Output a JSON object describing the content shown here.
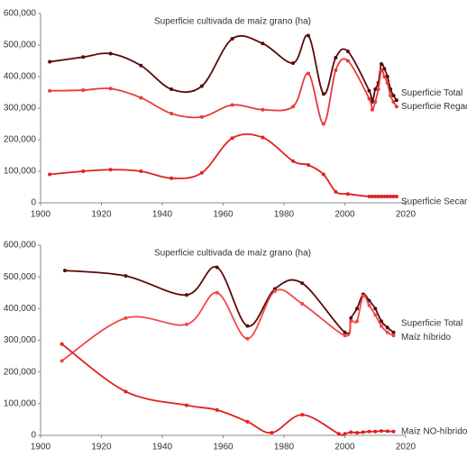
{
  "chart_data": [
    {
      "type": "line",
      "title": "Superficie cultivada de maíz grano (ha)",
      "xlim": [
        1900,
        2020
      ],
      "xticks": [
        1900,
        1920,
        1940,
        1960,
        1980,
        2000,
        2020
      ],
      "ylim": [
        0,
        600000
      ],
      "yticks": [
        0,
        {
          "value": 100000,
          "label": "100,000"
        },
        {
          "value": 200000,
          "label": "200,000"
        },
        {
          "value": 300000,
          "label": "300,000"
        },
        {
          "value": 400000,
          "label": "400,000"
        },
        {
          "value": 500000,
          "label": "500,000"
        },
        {
          "value": 600000,
          "label": "600,000"
        }
      ],
      "series": [
        {
          "name": "Superficie Total",
          "color": "#5a0a0a",
          "x": [
            1903,
            1914,
            1923,
            1933,
            1943,
            1953,
            1963,
            1973,
            1983,
            1988,
            1993,
            1997,
            2001,
            2008,
            2009,
            2010,
            2011,
            2012,
            2013,
            2014,
            2015,
            2016,
            2017
          ],
          "values": [
            447000,
            462000,
            473000,
            435000,
            360000,
            370000,
            520000,
            505000,
            443000,
            530000,
            345000,
            460000,
            480000,
            355000,
            320000,
            360000,
            380000,
            440000,
            425000,
            400000,
            360000,
            340000,
            325000
          ]
        },
        {
          "name": "Superficie Regadío",
          "color": "#e83a3a",
          "x": [
            1903,
            1914,
            1923,
            1933,
            1943,
            1953,
            1963,
            1973,
            1983,
            1988,
            1993,
            1997,
            2001,
            2008,
            2009,
            2010,
            2011,
            2012,
            2013,
            2014,
            2015,
            2016,
            2017
          ],
          "values": [
            355000,
            357000,
            362000,
            333000,
            283000,
            272000,
            310000,
            295000,
            305000,
            410000,
            250000,
            420000,
            450000,
            330000,
            295000,
            320000,
            360000,
            420000,
            400000,
            380000,
            340000,
            320000,
            305000
          ]
        },
        {
          "name": "Superficie Secano",
          "color": "#e02020",
          "x": [
            1903,
            1914,
            1923,
            1933,
            1943,
            1953,
            1963,
            1973,
            1983,
            1988,
            1993,
            1997,
            2001,
            2008,
            2009,
            2010,
            2011,
            2012,
            2013,
            2014,
            2015,
            2016,
            2017
          ],
          "values": [
            90000,
            100000,
            105000,
            100000,
            78000,
            95000,
            205000,
            207000,
            132000,
            120000,
            90000,
            35000,
            28000,
            20000,
            20000,
            20000,
            20000,
            20000,
            20000,
            20000,
            20000,
            20000,
            20000
          ]
        }
      ]
    },
    {
      "type": "line",
      "title": "Superficie cultivada de maíz grano (ha)",
      "xlim": [
        1900,
        2020
      ],
      "xticks": [
        1900,
        1920,
        1940,
        1960,
        1980,
        2000,
        2020
      ],
      "ylim": [
        0,
        600000
      ],
      "yticks": [
        0,
        {
          "value": 100000,
          "label": "100,000"
        },
        {
          "value": 200000,
          "label": "200,000"
        },
        {
          "value": 300000,
          "label": "300,000"
        },
        {
          "value": 400000,
          "label": "400,000"
        },
        {
          "value": 500000,
          "label": "500,000"
        },
        {
          "value": 600000,
          "label": "600,000"
        }
      ],
      "series": [
        {
          "name": "Superficie Total",
          "color": "#5a0a0a",
          "x": [
            1908,
            1928,
            1948,
            1958,
            1968,
            1977,
            1986,
            2000,
            2002,
            2004,
            2006,
            2008,
            2010,
            2012,
            2014,
            2016
          ],
          "values": [
            520000,
            503000,
            443000,
            530000,
            345000,
            462000,
            480000,
            325000,
            370000,
            400000,
            445000,
            425000,
            400000,
            360000,
            340000,
            325000
          ]
        },
        {
          "name": "Maíz híbrido",
          "color": "#f04848",
          "x": [
            1907,
            1928,
            1948,
            1958,
            1968,
            1977,
            1986,
            2000,
            2002,
            2004,
            2006,
            2008,
            2010,
            2012,
            2014,
            2016
          ],
          "values": [
            235000,
            370000,
            350000,
            450000,
            305000,
            455000,
            415000,
            315000,
            360000,
            360000,
            440000,
            410000,
            380000,
            345000,
            325000,
            315000
          ]
        },
        {
          "name": "Maíz NO-híbrido",
          "color": "#e02020",
          "x": [
            1907,
            1928,
            1948,
            1958,
            1968,
            1976,
            1986,
            1998,
            2000,
            2002,
            2004,
            2006,
            2008,
            2010,
            2012,
            2014,
            2016
          ],
          "values": [
            288000,
            138000,
            95000,
            80000,
            43000,
            8000,
            65000,
            5000,
            5000,
            10000,
            8000,
            10000,
            12000,
            12000,
            14000,
            13000,
            12000
          ]
        }
      ]
    }
  ]
}
